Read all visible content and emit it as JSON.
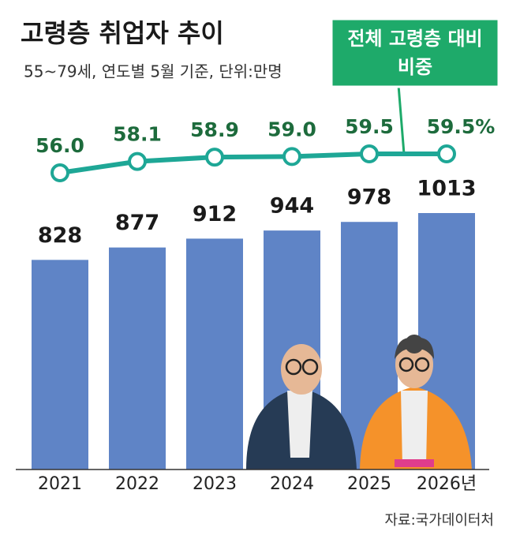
{
  "chart_data": [
    {
      "type": "bar",
      "title": "고령층 취업자 추이",
      "subtitle": "55~79세, 연도별 5월 기준, 단위:만명",
      "categories": [
        "2021",
        "2022",
        "2023",
        "2024",
        "2025",
        "2026년"
      ],
      "values": [
        828,
        877,
        912,
        944,
        978,
        1013
      ],
      "color": "#5f84c6",
      "source": "자료:국가데이터처"
    },
    {
      "type": "line",
      "annotation": [
        "전체 고령층 대비",
        "비중"
      ],
      "values": [
        56.0,
        58.1,
        58.9,
        59.0,
        59.5,
        59.5
      ],
      "value_labels": [
        "56.0",
        "58.1",
        "58.9",
        "59.0",
        "59.5",
        "59.5%"
      ],
      "color": "#1ea796",
      "label_color": "#1d6b3c"
    }
  ]
}
